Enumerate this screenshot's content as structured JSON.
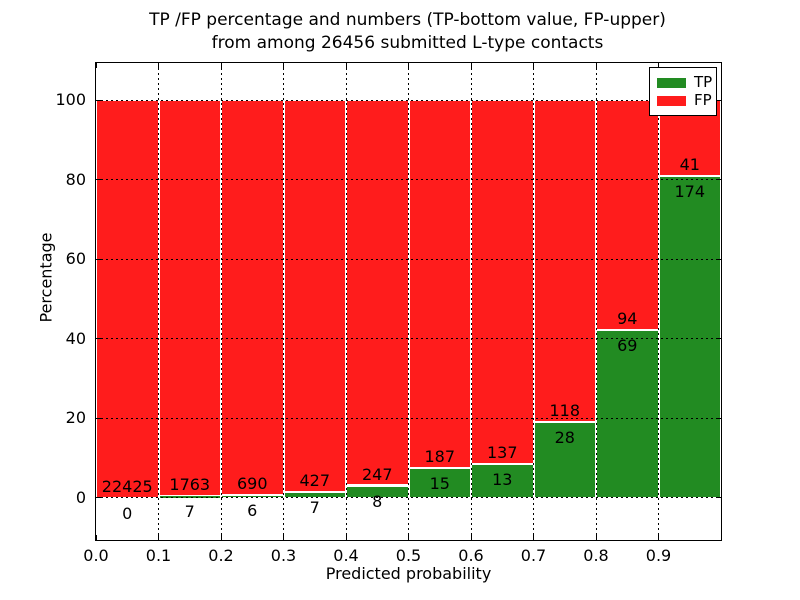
{
  "title": {
    "line1": "TP /FP percentage and numbers (TP-bottom value, FP-upper)",
    "line2": "from among 26456 submitted L-type contacts"
  },
  "axes": {
    "xlabel": "Predicted probability",
    "ylabel": "Percentage"
  },
  "legend": {
    "position": "upper right",
    "items": [
      {
        "label": "TP",
        "color": "#228b22"
      },
      {
        "label": "FP",
        "color": "#ff1c1c"
      }
    ]
  },
  "colors": {
    "tp": "#228b22",
    "fp": "#ff1c1c",
    "bar_edge": "#ffffff",
    "grid": "#000000",
    "text": "#000000"
  },
  "chart_data": {
    "type": "bar",
    "stacked": true,
    "title": "TP /FP percentage and numbers (TP-bottom value, FP-upper) from among 26456 submitted L-type contacts",
    "xlabel": "Predicted probability",
    "ylabel": "Percentage",
    "total_submitted": 26456,
    "xlim": [
      0.0,
      1.0
    ],
    "ylim": [
      -10.57,
      109.43
    ],
    "grid": "dotted, both axes, on top of bars",
    "legend_position": "upper right",
    "bin_width": 0.1,
    "categories": [
      "0.0-0.1",
      "0.1-0.2",
      "0.2-0.3",
      "0.3-0.4",
      "0.4-0.5",
      "0.5-0.6",
      "0.6-0.7",
      "0.7-0.8",
      "0.8-0.9",
      "0.9-1.0"
    ],
    "series": [
      {
        "name": "TP",
        "color": "#228b22",
        "values": [
          0,
          7,
          6,
          7,
          8,
          15,
          13,
          28,
          69,
          174
        ]
      },
      {
        "name": "FP",
        "color": "#ff1c1c",
        "values": [
          22425,
          1763,
          690,
          427,
          247,
          187,
          137,
          118,
          94,
          41
        ]
      }
    ],
    "bars": [
      {
        "x0": 0.0,
        "x1": 0.1,
        "tp": 0,
        "fp": 22425,
        "tp_pct": 0.0,
        "fp_pct": 100.0
      },
      {
        "x0": 0.1,
        "x1": 0.2,
        "tp": 7,
        "fp": 1763,
        "tp_pct": 0.4,
        "fp_pct": 99.6
      },
      {
        "x0": 0.2,
        "x1": 0.3,
        "tp": 6,
        "fp": 690,
        "tp_pct": 0.86,
        "fp_pct": 99.14
      },
      {
        "x0": 0.3,
        "x1": 0.4,
        "tp": 7,
        "fp": 427,
        "tp_pct": 1.61,
        "fp_pct": 98.39
      },
      {
        "x0": 0.4,
        "x1": 0.5,
        "tp": 8,
        "fp": 247,
        "tp_pct": 3.14,
        "fp_pct": 96.86
      },
      {
        "x0": 0.5,
        "x1": 0.6,
        "tp": 15,
        "fp": 187,
        "tp_pct": 7.43,
        "fp_pct": 92.57
      },
      {
        "x0": 0.6,
        "x1": 0.7,
        "tp": 13,
        "fp": 137,
        "tp_pct": 8.67,
        "fp_pct": 91.33
      },
      {
        "x0": 0.7,
        "x1": 0.8,
        "tp": 28,
        "fp": 118,
        "tp_pct": 19.18,
        "fp_pct": 80.82
      },
      {
        "x0": 0.8,
        "x1": 0.9,
        "tp": 69,
        "fp": 94,
        "tp_pct": 42.33,
        "fp_pct": 57.67
      },
      {
        "x0": 0.9,
        "x1": 1.0,
        "tp": 174,
        "fp": 41,
        "tp_pct": 80.93,
        "fp_pct": 19.07
      }
    ],
    "xticks": [
      {
        "v": 0.0,
        "label": "0.0"
      },
      {
        "v": 0.1,
        "label": "0.1"
      },
      {
        "v": 0.2,
        "label": "0.2"
      },
      {
        "v": 0.3,
        "label": "0.3"
      },
      {
        "v": 0.4,
        "label": "0.4"
      },
      {
        "v": 0.5,
        "label": "0.5"
      },
      {
        "v": 0.6,
        "label": "0.6"
      },
      {
        "v": 0.7,
        "label": "0.7"
      },
      {
        "v": 0.8,
        "label": "0.8"
      },
      {
        "v": 0.9,
        "label": "0.9"
      },
      {
        "v": 1.0,
        "label": ""
      }
    ],
    "yticks": [
      {
        "v": 0,
        "label": "0"
      },
      {
        "v": 20,
        "label": "20"
      },
      {
        "v": 40,
        "label": "40"
      },
      {
        "v": 60,
        "label": "60"
      },
      {
        "v": 80,
        "label": "80"
      },
      {
        "v": 100,
        "label": "100"
      }
    ]
  }
}
